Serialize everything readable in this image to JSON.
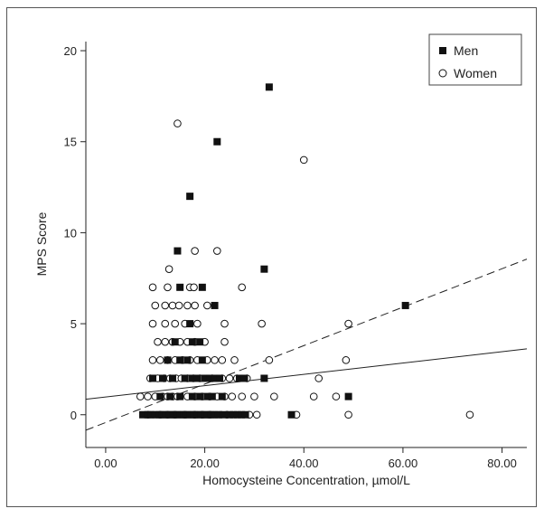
{
  "chart_data": {
    "type": "scatter",
    "xlabel": "Homocysteine Concentration, µmol/L",
    "ylabel": "MPS Score",
    "xlim": [
      -4,
      85
    ],
    "ylim": [
      -1.8,
      20.5
    ],
    "xticks": [
      "0.00",
      "20.00",
      "40.00",
      "60.00",
      "80.00"
    ],
    "xtick_values": [
      0,
      20,
      40,
      60,
      80
    ],
    "yticks": [
      "0",
      "5",
      "10",
      "15",
      "20"
    ],
    "ytick_values": [
      0,
      5,
      10,
      15,
      20
    ],
    "grid": false,
    "legend_position": "top-right",
    "series": [
      {
        "name": "Men",
        "marker": "filled-square",
        "color": "#111111",
        "points": [
          [
            7.5,
            0
          ],
          [
            8.5,
            0
          ],
          [
            9.2,
            0
          ],
          [
            10,
            0
          ],
          [
            10.8,
            0
          ],
          [
            11.5,
            0
          ],
          [
            12.2,
            0
          ],
          [
            12.9,
            0
          ],
          [
            13.6,
            0
          ],
          [
            14.3,
            0
          ],
          [
            15,
            0
          ],
          [
            15.7,
            0
          ],
          [
            16.4,
            0
          ],
          [
            17.1,
            0
          ],
          [
            17.8,
            0
          ],
          [
            18.5,
            0
          ],
          [
            19.2,
            0
          ],
          [
            19.9,
            0
          ],
          [
            20.6,
            0
          ],
          [
            21.3,
            0
          ],
          [
            22,
            0
          ],
          [
            22.8,
            0
          ],
          [
            23.6,
            0
          ],
          [
            25,
            0
          ],
          [
            25.8,
            0
          ],
          [
            26.6,
            0
          ],
          [
            27.4,
            0
          ],
          [
            28.2,
            0
          ],
          [
            37.5,
            0
          ],
          [
            11,
            1
          ],
          [
            13,
            1
          ],
          [
            15,
            1
          ],
          [
            17.5,
            1
          ],
          [
            19,
            1
          ],
          [
            20.5,
            1
          ],
          [
            21.5,
            1
          ],
          [
            23.5,
            1
          ],
          [
            49,
            1
          ],
          [
            9.5,
            2
          ],
          [
            11.5,
            2
          ],
          [
            13.5,
            2
          ],
          [
            16,
            2
          ],
          [
            17.5,
            2
          ],
          [
            18.5,
            2
          ],
          [
            20,
            2
          ],
          [
            21,
            2
          ],
          [
            22,
            2
          ],
          [
            23,
            2
          ],
          [
            27,
            2
          ],
          [
            28,
            2
          ],
          [
            32,
            2
          ],
          [
            12.5,
            3
          ],
          [
            15,
            3
          ],
          [
            16.5,
            3
          ],
          [
            19.5,
            3
          ],
          [
            14,
            4
          ],
          [
            17.5,
            4
          ],
          [
            19,
            4
          ],
          [
            17,
            5
          ],
          [
            22,
            6
          ],
          [
            60.5,
            6
          ],
          [
            15,
            7
          ],
          [
            19.5,
            7
          ],
          [
            32,
            8
          ],
          [
            14.5,
            9
          ],
          [
            17,
            12
          ],
          [
            22.5,
            15
          ],
          [
            33,
            18
          ]
        ]
      },
      {
        "name": "Women",
        "marker": "open-circle",
        "color": "#111111",
        "points": [
          [
            8.5,
            0
          ],
          [
            11,
            0
          ],
          [
            12.5,
            0
          ],
          [
            14,
            0
          ],
          [
            16,
            0
          ],
          [
            18,
            0
          ],
          [
            19.5,
            0
          ],
          [
            21,
            0
          ],
          [
            24.5,
            0
          ],
          [
            29,
            0
          ],
          [
            30.5,
            0
          ],
          [
            38.5,
            0
          ],
          [
            49,
            0
          ],
          [
            73.5,
            0
          ],
          [
            7,
            1
          ],
          [
            8.5,
            1
          ],
          [
            10,
            1
          ],
          [
            11.5,
            1
          ],
          [
            12.5,
            1
          ],
          [
            13.5,
            1
          ],
          [
            14.5,
            1
          ],
          [
            16.5,
            1
          ],
          [
            18,
            1
          ],
          [
            19.5,
            1
          ],
          [
            21,
            1
          ],
          [
            22.5,
            1
          ],
          [
            24,
            1
          ],
          [
            25.5,
            1
          ],
          [
            27.5,
            1
          ],
          [
            30,
            1
          ],
          [
            34,
            1
          ],
          [
            42,
            1
          ],
          [
            46.5,
            1
          ],
          [
            9,
            2
          ],
          [
            10.5,
            2
          ],
          [
            11.8,
            2
          ],
          [
            13,
            2
          ],
          [
            14.2,
            2
          ],
          [
            15.3,
            2
          ],
          [
            16.5,
            2
          ],
          [
            17.7,
            2
          ],
          [
            19,
            2
          ],
          [
            21.5,
            2
          ],
          [
            23.5,
            2
          ],
          [
            25,
            2
          ],
          [
            26.5,
            2
          ],
          [
            28.5,
            2
          ],
          [
            43,
            2
          ],
          [
            9.5,
            3
          ],
          [
            11,
            3
          ],
          [
            12.5,
            3
          ],
          [
            14,
            3
          ],
          [
            15.5,
            3
          ],
          [
            17,
            3
          ],
          [
            18.5,
            3
          ],
          [
            20.5,
            3
          ],
          [
            22,
            3
          ],
          [
            23.5,
            3
          ],
          [
            26,
            3
          ],
          [
            33,
            3
          ],
          [
            48.5,
            3
          ],
          [
            10.5,
            4
          ],
          [
            12,
            4
          ],
          [
            13.5,
            4
          ],
          [
            15,
            4
          ],
          [
            16.5,
            4
          ],
          [
            18,
            4
          ],
          [
            20,
            4
          ],
          [
            24,
            4
          ],
          [
            9.5,
            5
          ],
          [
            12,
            5
          ],
          [
            14,
            5
          ],
          [
            16,
            5
          ],
          [
            18.5,
            5
          ],
          [
            24,
            5
          ],
          [
            31.5,
            5
          ],
          [
            49,
            5
          ],
          [
            10,
            6
          ],
          [
            12,
            6
          ],
          [
            13.5,
            6
          ],
          [
            14.8,
            6
          ],
          [
            16.5,
            6
          ],
          [
            18,
            6
          ],
          [
            20.5,
            6
          ],
          [
            9.5,
            7
          ],
          [
            12.5,
            7
          ],
          [
            17,
            7
          ],
          [
            17.8,
            7
          ],
          [
            27.5,
            7
          ],
          [
            12.8,
            8
          ],
          [
            18,
            9
          ],
          [
            22.5,
            9
          ],
          [
            40,
            14
          ],
          [
            14.5,
            16
          ]
        ]
      }
    ],
    "fit_lines": [
      {
        "series": "Women",
        "style": "solid",
        "x": [
          -4,
          85
        ],
        "y": [
          0.85,
          3.62
        ]
      },
      {
        "series": "Men",
        "style": "dashed",
        "x": [
          -4,
          85
        ],
        "y": [
          -0.85,
          8.55
        ]
      }
    ]
  }
}
